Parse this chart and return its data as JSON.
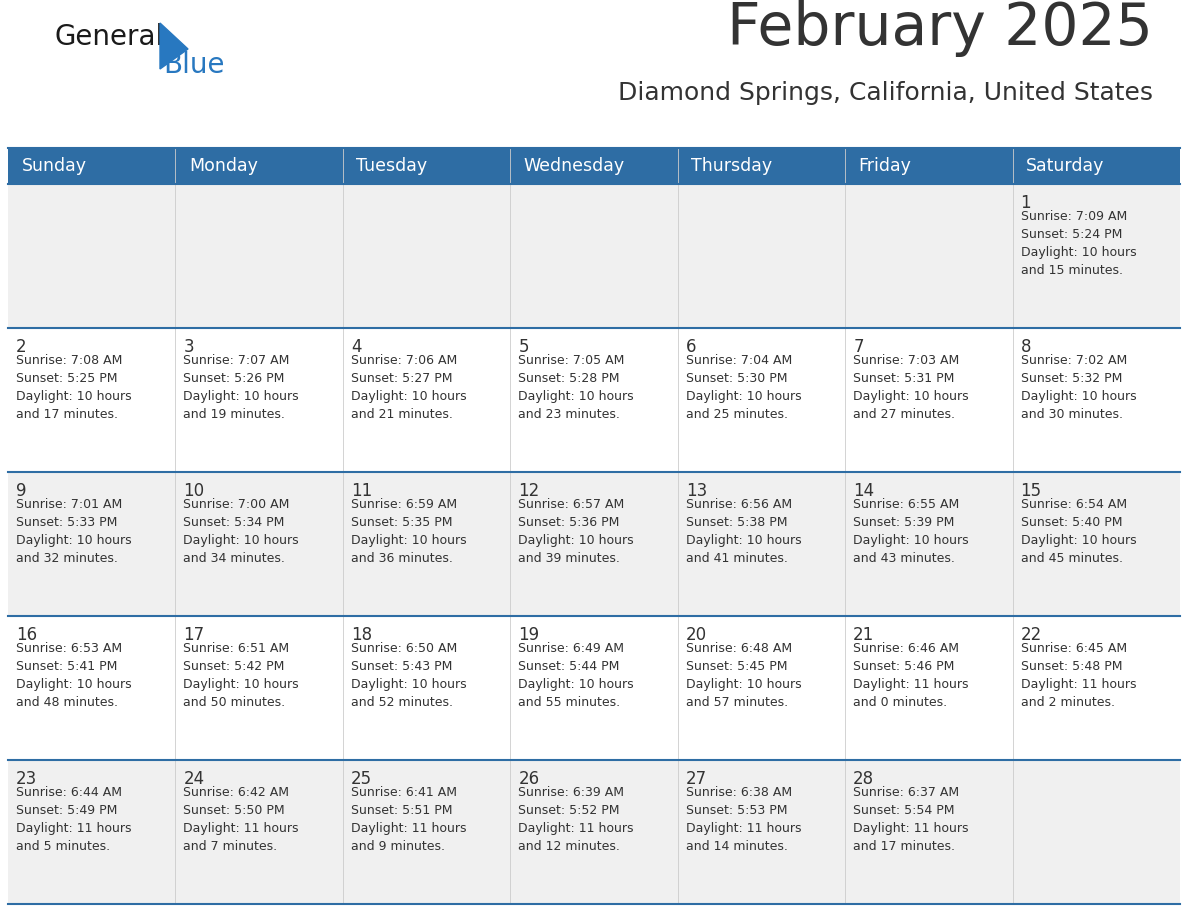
{
  "title": "February 2025",
  "subtitle": "Diamond Springs, California, United States",
  "header_color": "#2e6da4",
  "header_text_color": "#ffffff",
  "cell_bg_light": "#f0f0f0",
  "cell_bg_white": "#ffffff",
  "border_color": "#2e6da4",
  "text_color": "#333333",
  "days_of_week": [
    "Sunday",
    "Monday",
    "Tuesday",
    "Wednesday",
    "Thursday",
    "Friday",
    "Saturday"
  ],
  "calendar_data": [
    [
      null,
      null,
      null,
      null,
      null,
      null,
      {
        "day": "1",
        "sunrise": "7:09 AM",
        "sunset": "5:24 PM",
        "daylight": "10 hours\nand 15 minutes."
      }
    ],
    [
      {
        "day": "2",
        "sunrise": "7:08 AM",
        "sunset": "5:25 PM",
        "daylight": "10 hours\nand 17 minutes."
      },
      {
        "day": "3",
        "sunrise": "7:07 AM",
        "sunset": "5:26 PM",
        "daylight": "10 hours\nand 19 minutes."
      },
      {
        "day": "4",
        "sunrise": "7:06 AM",
        "sunset": "5:27 PM",
        "daylight": "10 hours\nand 21 minutes."
      },
      {
        "day": "5",
        "sunrise": "7:05 AM",
        "sunset": "5:28 PM",
        "daylight": "10 hours\nand 23 minutes."
      },
      {
        "day": "6",
        "sunrise": "7:04 AM",
        "sunset": "5:30 PM",
        "daylight": "10 hours\nand 25 minutes."
      },
      {
        "day": "7",
        "sunrise": "7:03 AM",
        "sunset": "5:31 PM",
        "daylight": "10 hours\nand 27 minutes."
      },
      {
        "day": "8",
        "sunrise": "7:02 AM",
        "sunset": "5:32 PM",
        "daylight": "10 hours\nand 30 minutes."
      }
    ],
    [
      {
        "day": "9",
        "sunrise": "7:01 AM",
        "sunset": "5:33 PM",
        "daylight": "10 hours\nand 32 minutes."
      },
      {
        "day": "10",
        "sunrise": "7:00 AM",
        "sunset": "5:34 PM",
        "daylight": "10 hours\nand 34 minutes."
      },
      {
        "day": "11",
        "sunrise": "6:59 AM",
        "sunset": "5:35 PM",
        "daylight": "10 hours\nand 36 minutes."
      },
      {
        "day": "12",
        "sunrise": "6:57 AM",
        "sunset": "5:36 PM",
        "daylight": "10 hours\nand 39 minutes."
      },
      {
        "day": "13",
        "sunrise": "6:56 AM",
        "sunset": "5:38 PM",
        "daylight": "10 hours\nand 41 minutes."
      },
      {
        "day": "14",
        "sunrise": "6:55 AM",
        "sunset": "5:39 PM",
        "daylight": "10 hours\nand 43 minutes."
      },
      {
        "day": "15",
        "sunrise": "6:54 AM",
        "sunset": "5:40 PM",
        "daylight": "10 hours\nand 45 minutes."
      }
    ],
    [
      {
        "day": "16",
        "sunrise": "6:53 AM",
        "sunset": "5:41 PM",
        "daylight": "10 hours\nand 48 minutes."
      },
      {
        "day": "17",
        "sunrise": "6:51 AM",
        "sunset": "5:42 PM",
        "daylight": "10 hours\nand 50 minutes."
      },
      {
        "day": "18",
        "sunrise": "6:50 AM",
        "sunset": "5:43 PM",
        "daylight": "10 hours\nand 52 minutes."
      },
      {
        "day": "19",
        "sunrise": "6:49 AM",
        "sunset": "5:44 PM",
        "daylight": "10 hours\nand 55 minutes."
      },
      {
        "day": "20",
        "sunrise": "6:48 AM",
        "sunset": "5:45 PM",
        "daylight": "10 hours\nand 57 minutes."
      },
      {
        "day": "21",
        "sunrise": "6:46 AM",
        "sunset": "5:46 PM",
        "daylight": "11 hours\nand 0 minutes."
      },
      {
        "day": "22",
        "sunrise": "6:45 AM",
        "sunset": "5:48 PM",
        "daylight": "11 hours\nand 2 minutes."
      }
    ],
    [
      {
        "day": "23",
        "sunrise": "6:44 AM",
        "sunset": "5:49 PM",
        "daylight": "11 hours\nand 5 minutes."
      },
      {
        "day": "24",
        "sunrise": "6:42 AM",
        "sunset": "5:50 PM",
        "daylight": "11 hours\nand 7 minutes."
      },
      {
        "day": "25",
        "sunrise": "6:41 AM",
        "sunset": "5:51 PM",
        "daylight": "11 hours\nand 9 minutes."
      },
      {
        "day": "26",
        "sunrise": "6:39 AM",
        "sunset": "5:52 PM",
        "daylight": "11 hours\nand 12 minutes."
      },
      {
        "day": "27",
        "sunrise": "6:38 AM",
        "sunset": "5:53 PM",
        "daylight": "11 hours\nand 14 minutes."
      },
      {
        "day": "28",
        "sunrise": "6:37 AM",
        "sunset": "5:54 PM",
        "daylight": "11 hours\nand 17 minutes."
      },
      null
    ]
  ],
  "logo_color_general": "#1a1a1a",
  "logo_color_blue": "#2878c0",
  "logo_triangle_color": "#2878c0",
  "fig_width": 11.88,
  "fig_height": 9.18,
  "dpi": 100
}
